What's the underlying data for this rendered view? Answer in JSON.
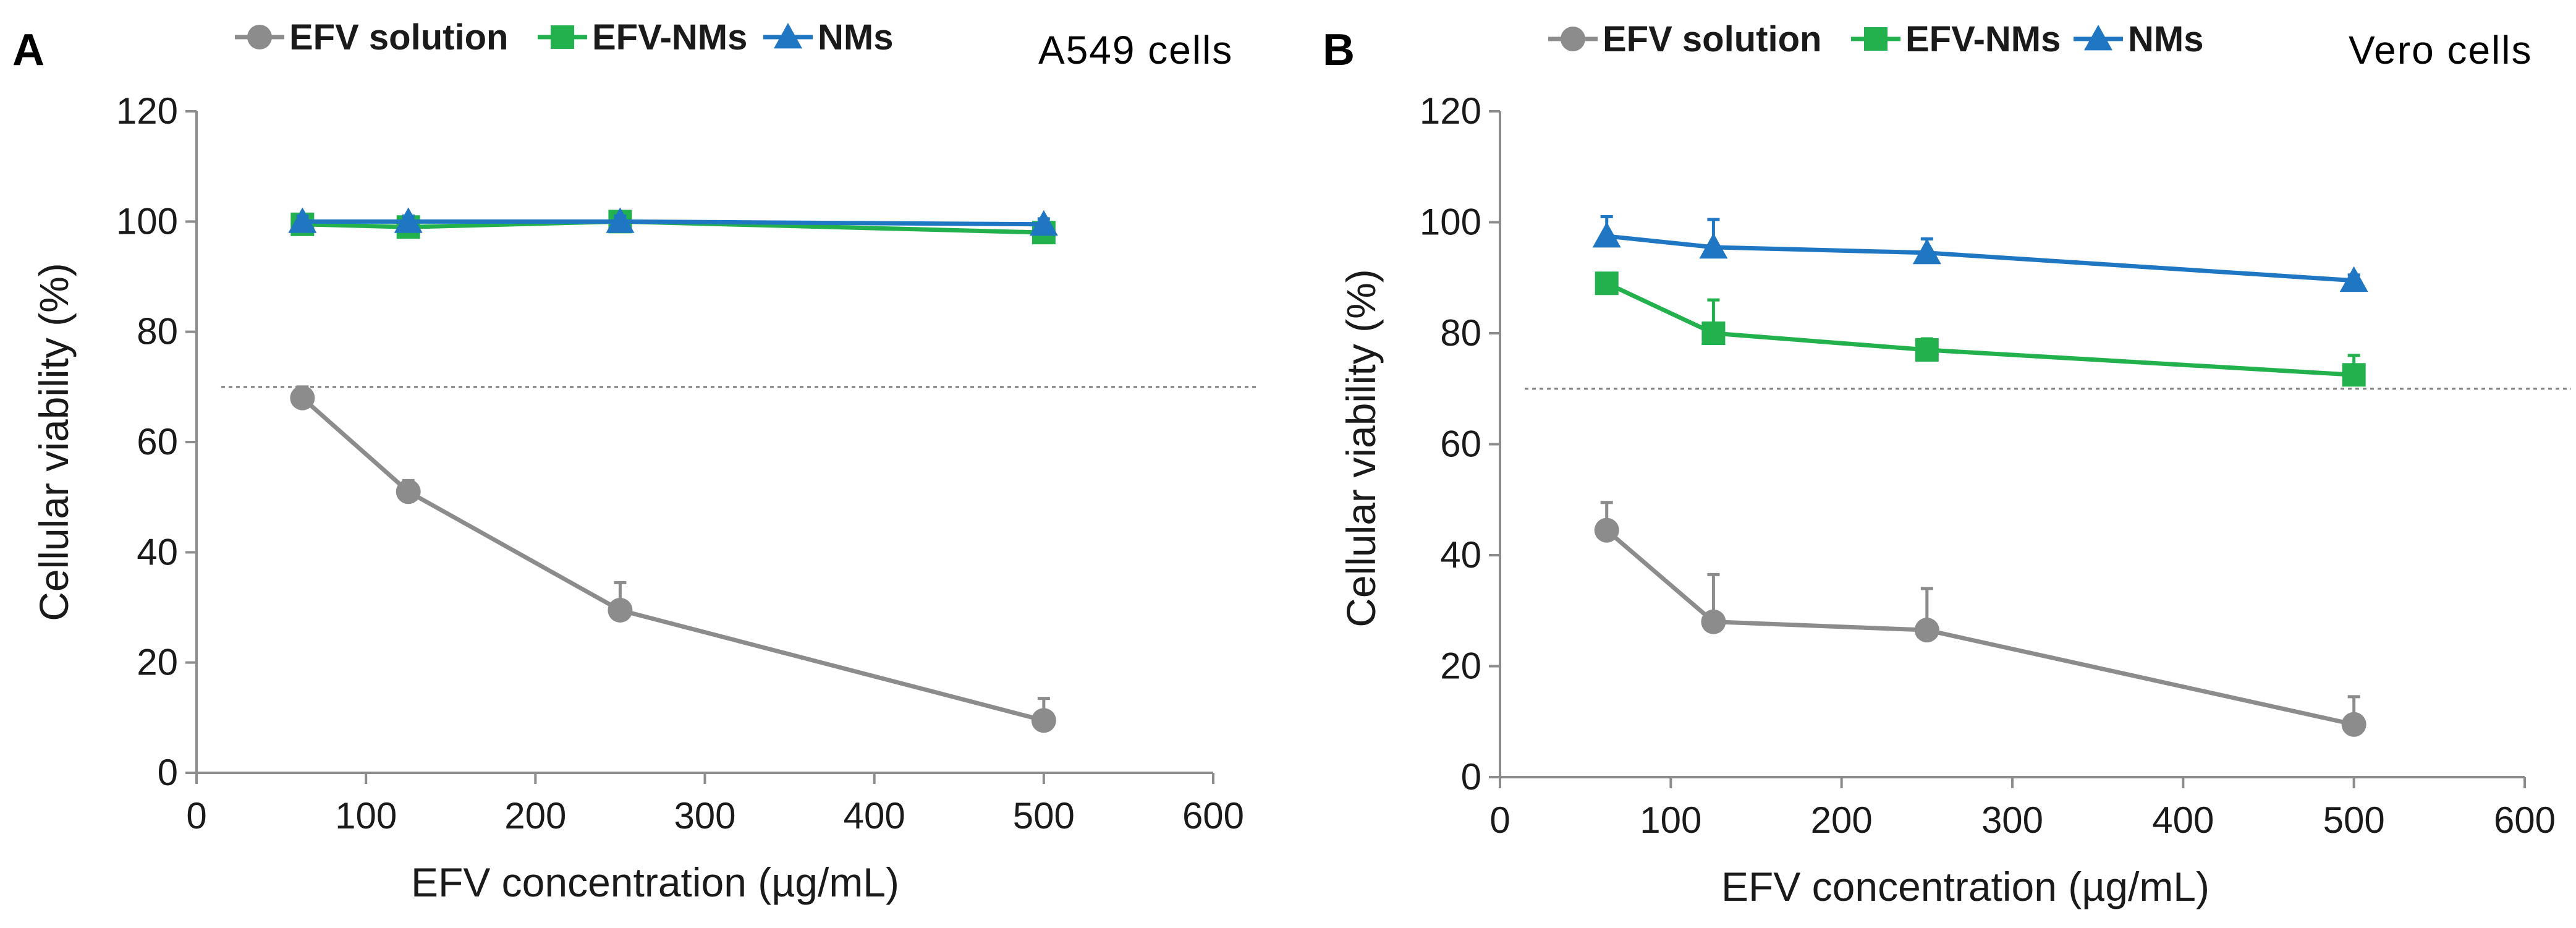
{
  "figure": {
    "panel_labels": [
      "A",
      "B"
    ],
    "cell_labels": [
      "A549 cells",
      "Vero cells"
    ]
  },
  "colors": {
    "efv_solution": "#8c8c8c",
    "efv_nms": "#22b14c",
    "nms": "#1f77c4"
  },
  "chart_data": [
    {
      "type": "line",
      "panel": "A",
      "title": "A549 cells",
      "xlabel": "EFV concentration (µg/mL)",
      "ylabel": "Cellular viability (%)",
      "xlim": [
        0,
        600
      ],
      "ylim": [
        0,
        120
      ],
      "xticks": [
        "0",
        "100",
        "200",
        "300",
        "400",
        "500",
        "600"
      ],
      "yticks": [
        "0",
        "20",
        "40",
        "60",
        "80",
        "100",
        "120"
      ],
      "grid": false,
      "legend_position": "top",
      "threshold": 70,
      "x": [
        62.5,
        125,
        250,
        500
      ],
      "series": [
        {
          "name": "EFV solution",
          "marker": "circle",
          "values": [
            68,
            51,
            29.5,
            9.5
          ],
          "errors": [
            2,
            2,
            5,
            4
          ]
        },
        {
          "name": "EFV-NMs",
          "marker": "square",
          "values": [
            99.5,
            99,
            100,
            98
          ],
          "errors": [
            1,
            1,
            1,
            1
          ]
        },
        {
          "name": "NMs",
          "marker": "triangle",
          "values": [
            100,
            100,
            100,
            99.5
          ],
          "errors": [
            1,
            1,
            1,
            1
          ]
        }
      ]
    },
    {
      "type": "line",
      "panel": "B",
      "title": "Vero cells",
      "xlabel": "EFV concentration (µg/mL)",
      "ylabel": "Cellular viability (%)",
      "xlim": [
        0,
        600
      ],
      "ylim": [
        0,
        120
      ],
      "xticks": [
        "0",
        "100",
        "200",
        "300",
        "400",
        "500",
        "600"
      ],
      "yticks": [
        "0",
        "20",
        "40",
        "60",
        "80",
        "100",
        "120"
      ],
      "grid": false,
      "legend_position": "top",
      "threshold": 70,
      "x": [
        62.5,
        125,
        250,
        500
      ],
      "series": [
        {
          "name": "EFV solution",
          "marker": "circle",
          "values": [
            44.5,
            28,
            26.5,
            9.5
          ],
          "errors": [
            5,
            8.5,
            7.5,
            5
          ]
        },
        {
          "name": "EFV-NMs",
          "marker": "square",
          "values": [
            89,
            80,
            77,
            72.5
          ],
          "errors": [
            1,
            6,
            2,
            3.5
          ]
        },
        {
          "name": "NMs",
          "marker": "triangle",
          "values": [
            97.5,
            95.5,
            94.5,
            89.5
          ],
          "errors": [
            3.5,
            5,
            2.5,
            1
          ]
        }
      ]
    }
  ]
}
